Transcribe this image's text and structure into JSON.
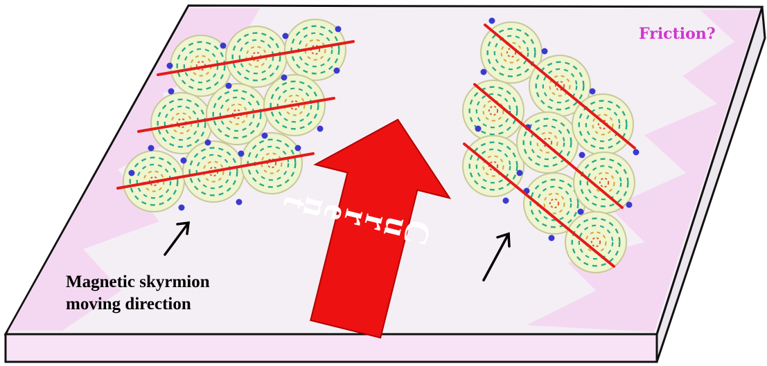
{
  "labels": {
    "friction": "Friction?",
    "moving_direction_line1": "Magnetic skyrmion",
    "moving_direction_line2": "moving direction",
    "current": "Current"
  },
  "colors": {
    "plate_top": "#f4eff4",
    "plate_pink": "#f3d3f1",
    "plate_side": "#f8e2f6",
    "outline": "#111111",
    "skyrmion_fill": "#eef5cf",
    "skyrmion_ring": "#c8c79a",
    "spin_green": "#2aa88a",
    "spin_core": "#e0552a",
    "dot_blue": "#3a3ad0",
    "track_line": "#e21b1b",
    "arrow_red": "#ee1111",
    "friction_text": "#d034d0"
  },
  "icons": [
    "current-arrow",
    "direction-arrow",
    "skyrmion"
  ]
}
